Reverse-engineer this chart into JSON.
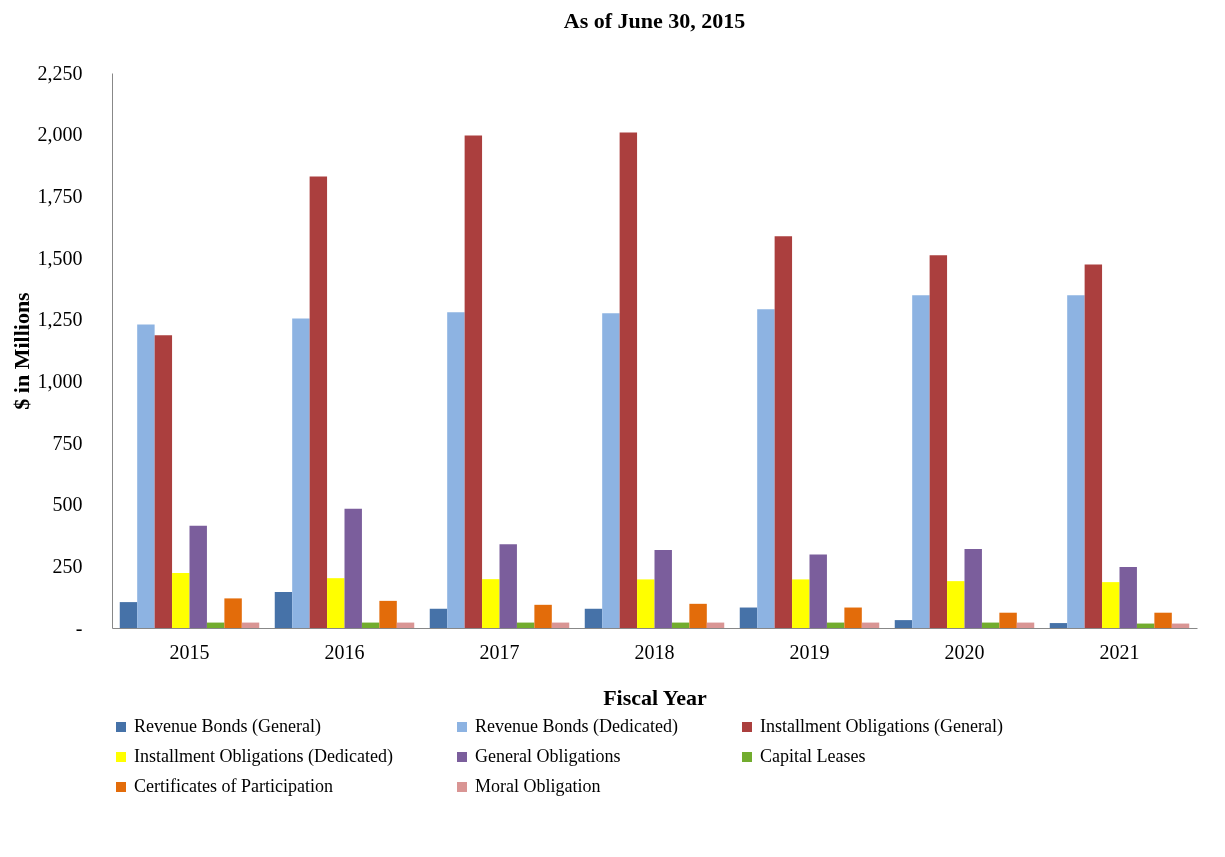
{
  "chart_data": {
    "type": "bar",
    "title": "As of June 30, 2015",
    "xlabel": "Fiscal Year",
    "ylabel": "$ in Millions",
    "categories": [
      "2015",
      "2016",
      "2017",
      "2018",
      "2019",
      "2020",
      "2021"
    ],
    "series": [
      {
        "name": "Revenue Bonds (General)",
        "color": "#4672a8",
        "values": [
          105,
          146,
          78,
          78,
          83,
          32,
          20
        ]
      },
      {
        "name": "Revenue Bonds (Dedicated)",
        "color": "#8db3e2",
        "values": [
          1230,
          1255,
          1280,
          1276,
          1292,
          1349,
          1349
        ]
      },
      {
        "name": "Installment Obligations (General)",
        "color": "#ab3f3e",
        "values": [
          1187,
          1830,
          1997,
          2009,
          1588,
          1511,
          1474
        ]
      },
      {
        "name": "Installment Obligations (Dedicated)",
        "color": "#ffff00",
        "values": [
          223,
          202,
          198,
          197,
          197,
          190,
          186
        ]
      },
      {
        "name": "General Obligations",
        "color": "#7b5e9c",
        "values": [
          415,
          483,
          340,
          316,
          298,
          320,
          247
        ]
      },
      {
        "name": "Capital Leases",
        "color": "#72ac2e",
        "values": [
          22,
          22,
          22,
          22,
          22,
          22,
          18
        ]
      },
      {
        "name": "Certificates of Participation",
        "color": "#e36c0a",
        "values": [
          120,
          110,
          94,
          98,
          83,
          62,
          62
        ]
      },
      {
        "name": "Moral Obligation",
        "color": "#d99594",
        "values": [
          22,
          22,
          22,
          22,
          22,
          22,
          18
        ]
      }
    ],
    "ylim": [
      0,
      2250
    ],
    "yticks": [
      {
        "value": 0,
        "label": "-"
      },
      250,
      500,
      750,
      {
        "value": 1000,
        "label": "1,000"
      },
      {
        "value": 1250,
        "label": "1,250"
      },
      {
        "value": 1500,
        "label": "1,500"
      },
      {
        "value": 1750,
        "label": "1,750"
      },
      {
        "value": 2000,
        "label": "2,000"
      },
      {
        "value": 2250,
        "label": "2,250"
      }
    ],
    "grid": false,
    "legend": "bottom"
  }
}
